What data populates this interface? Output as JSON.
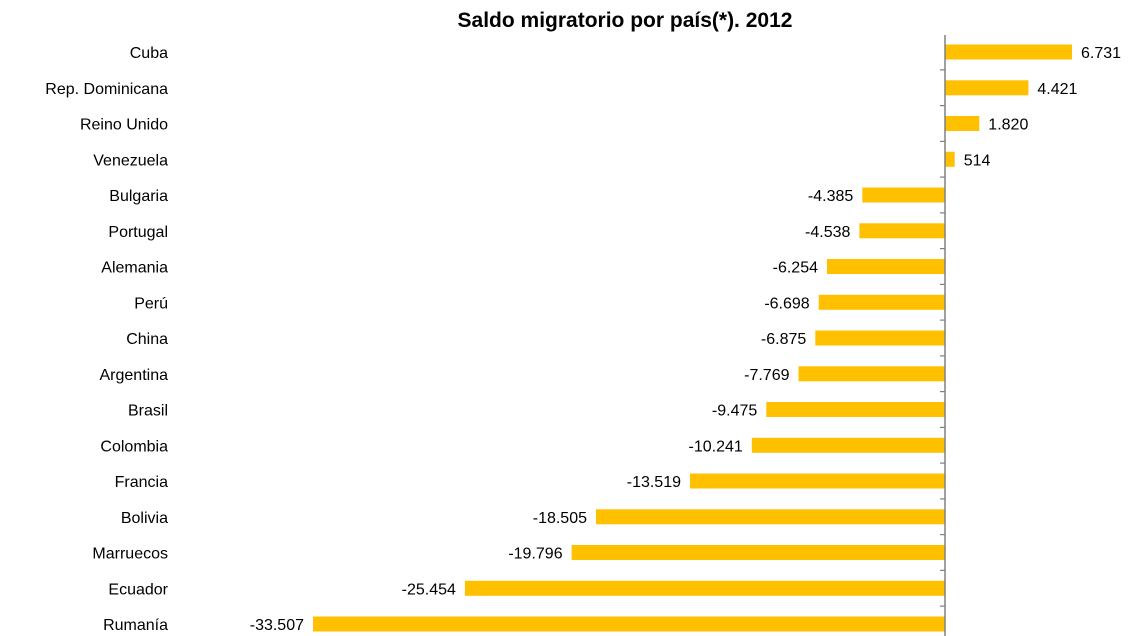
{
  "chart_data": {
    "type": "bar",
    "orientation": "horizontal",
    "title": "Saldo migratorio por país(*).  2012",
    "xlabel": "",
    "ylabel": "",
    "xlim": [
      -34000,
      7500
    ],
    "grid": false,
    "legend": "none",
    "bar_color": "#FFC000",
    "axis_color": "#808080",
    "categories": [
      "Cuba",
      "Rep. Dominicana",
      "Reino Unido",
      "Venezuela",
      "Bulgaria",
      "Portugal",
      "Alemania",
      "Perú",
      "China",
      "Argentina",
      "Brasil",
      "Colombia",
      "Francia",
      "Bolivia",
      "Marruecos",
      "Ecuador",
      "Rumanía"
    ],
    "values": [
      6731,
      4421,
      1820,
      514,
      -4385,
      -4538,
      -6254,
      -6698,
      -6875,
      -7769,
      -9475,
      -10241,
      -13519,
      -18505,
      -19796,
      -25454,
      -33507
    ],
    "data_labels": [
      "6.731",
      "4.421",
      "1.820",
      "514",
      "-4.385",
      "-4.538",
      "-6.254",
      "-6.698",
      "-6.875",
      "-7.769",
      "-9.475",
      "-10.241",
      "-13.519",
      "-18.505",
      "-19.796",
      "-25.454",
      "-33.507"
    ]
  }
}
